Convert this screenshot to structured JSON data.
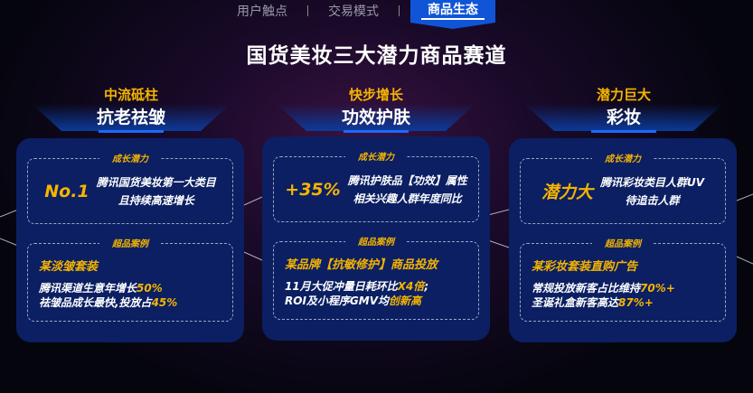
{
  "tabs": [
    {
      "label": "用户触点",
      "active": false
    },
    {
      "label": "交易模式",
      "active": false
    },
    {
      "label": "商品生态",
      "active": true
    }
  ],
  "title": "国货美妆三大潜力商品赛道",
  "columns": [
    {
      "sub": "中流砥柱",
      "main": "抗老祛皱",
      "growth": {
        "label": "成长潜力",
        "highlight": "No.1",
        "lines": [
          "腾讯国货美妆第一大类目",
          "且持续高速增长"
        ]
      },
      "case": {
        "label": "超品案例",
        "title": "某淡皱套装",
        "lines": [
          [
            "腾讯渠道生意年增长",
            "50%",
            ""
          ],
          [
            "祛皱品成长最快,投放占",
            "45%",
            ""
          ]
        ]
      }
    },
    {
      "sub": "快步增长",
      "main": "功效护肤",
      "growth": {
        "label": "成长潜力",
        "highlight": "+35%",
        "lines": [
          "腾讯护肤品【功效】属性",
          "相关兴趣人群年度同比"
        ]
      },
      "case": {
        "label": "超品案例",
        "title": "某品牌【抗敏修护】商品投放",
        "lines": [
          [
            "11月大促冲量日耗环比",
            "X4倍",
            ";"
          ],
          [
            "ROI及小程序GMV均",
            "创新高",
            ""
          ]
        ]
      }
    },
    {
      "sub": "潜力巨大",
      "main": "彩妆",
      "growth": {
        "label": "成长潜力",
        "highlight": "潜力大",
        "lines": [
          "腾讯彩妆类目人群UV",
          "待追击人群"
        ]
      },
      "case": {
        "label": "超品案例",
        "title": "某彩妆套装直购广告",
        "lines": [
          [
            "常规投放新客占比维持",
            "70%+",
            ""
          ],
          [
            "圣诞礼盒新客高达",
            "87%+",
            ""
          ]
        ]
      }
    }
  ],
  "colors": {
    "accent": "#f5b400",
    "card": "#0b1f62",
    "tab_active": "#1055d8"
  }
}
